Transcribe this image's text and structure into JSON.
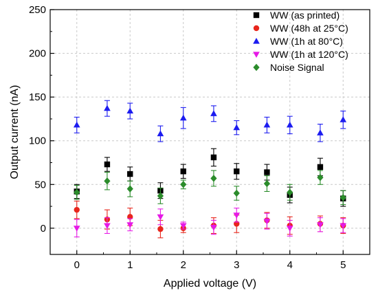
{
  "chart_data": {
    "type": "scatter",
    "xlabel": "Applied voltage (V)",
    "ylabel": "Output current (nA)",
    "xlim": [
      -0.5,
      5.5
    ],
    "ylim": [
      -30,
      250
    ],
    "x_ticks": [
      0,
      1,
      2,
      3,
      4,
      5
    ],
    "y_ticks": [
      0,
      50,
      100,
      150,
      200,
      250
    ],
    "grid": true,
    "legend_position": "top-right",
    "series": [
      {
        "name": "WW (as printed)",
        "marker": "square",
        "color": "#000000",
        "x": [
          0,
          0.57,
          1,
          1.57,
          2,
          2.57,
          3,
          3.57,
          4,
          4.57,
          5
        ],
        "y": [
          42,
          73,
          62,
          43,
          65,
          81,
          65,
          64,
          38,
          70,
          34
        ],
        "err": [
          8,
          8,
          8,
          9,
          8,
          10,
          9,
          9,
          9,
          10,
          9
        ]
      },
      {
        "name": "WW (48h at 25°C)",
        "marker": "circle",
        "color": "#e8261c",
        "x": [
          0,
          0.57,
          1,
          1.57,
          2,
          2.57,
          3,
          3.57,
          4,
          4.57,
          5
        ],
        "y": [
          21,
          10,
          13,
          -1,
          0,
          3,
          5,
          9,
          3,
          5,
          3
        ],
        "err": [
          10,
          11,
          10,
          10,
          5,
          9,
          10,
          9,
          10,
          9,
          9
        ]
      },
      {
        "name": "WW (1h at 80°C)",
        "marker": "triangle-up",
        "color": "#1c1cf0",
        "x": [
          0,
          0.57,
          1,
          1.57,
          2,
          2.57,
          3,
          3.57,
          4,
          4.57,
          5
        ],
        "y": [
          118,
          137,
          134,
          108,
          126,
          131,
          115,
          118,
          118,
          109,
          124
        ],
        "err": [
          9,
          9,
          9,
          9,
          12,
          9,
          8,
          9,
          10,
          10,
          10
        ]
      },
      {
        "name": "WW (1h at 120°C)",
        "marker": "triangle-down",
        "color": "#e619e6",
        "x": [
          0,
          0.57,
          1,
          1.57,
          2,
          2.57,
          3,
          3.57,
          4,
          4.57,
          5
        ],
        "y": [
          0,
          3,
          4,
          13,
          3,
          1,
          15,
          8,
          0,
          4,
          3
        ],
        "err": [
          10,
          9,
          7,
          9,
          4,
          8,
          8,
          9,
          9,
          8,
          8
        ]
      },
      {
        "name": "Noise Signal",
        "marker": "diamond",
        "color": "#2b8c2b",
        "x": [
          0,
          0.57,
          1,
          1.57,
          2,
          2.57,
          3,
          3.57,
          4,
          4.57,
          5
        ],
        "y": [
          41,
          54,
          45,
          37,
          50,
          57,
          40,
          51,
          41,
          58,
          35
        ],
        "err": [
          8,
          10,
          9,
          9,
          5,
          9,
          8,
          9,
          9,
          8,
          8
        ]
      }
    ]
  }
}
